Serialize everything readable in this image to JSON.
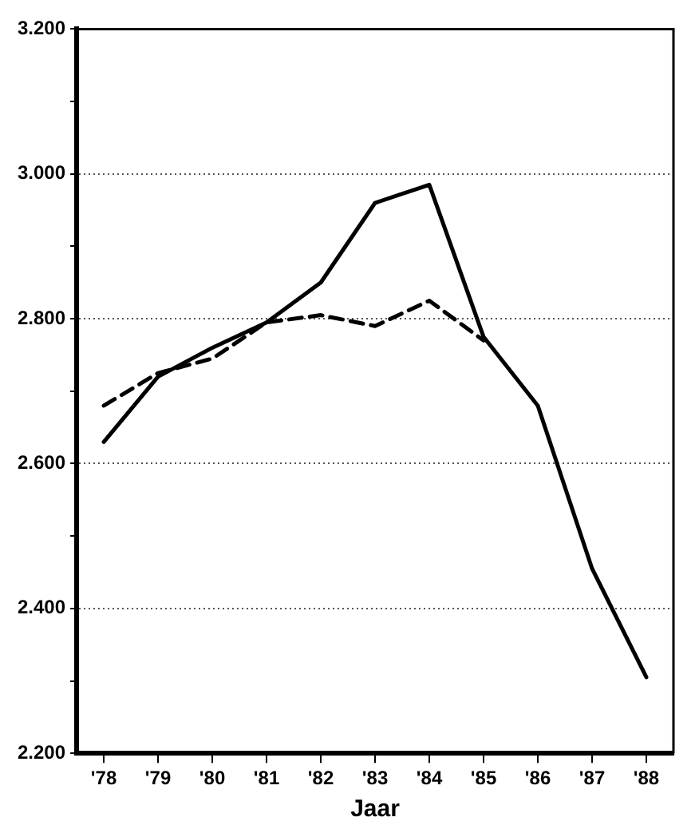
{
  "chart_data": {
    "type": "line",
    "xlabel": "Jaar",
    "categories": [
      "'78",
      "'79",
      "'80",
      "'81",
      "'82",
      "'83",
      "'84",
      "'85",
      "'86",
      "'87",
      "'88"
    ],
    "series": [
      {
        "color": "#000000",
        "line_style": "solid",
        "values": [
          2630,
          2720,
          2760,
          2795,
          2850,
          2960,
          2985,
          2775,
          2680,
          2455,
          2305
        ]
      },
      {
        "color": "#000000",
        "line_style": "dashed",
        "values": [
          2680,
          2725,
          2745,
          2795,
          2805,
          2790,
          2825,
          2770,
          null,
          null,
          null
        ]
      }
    ],
    "ylim": [
      2200,
      3200
    ],
    "yticks": [
      {
        "value": 2200,
        "label": "2.200"
      },
      {
        "value": 2300,
        "label": null
      },
      {
        "value": 2400,
        "label": "2.400"
      },
      {
        "value": 2500,
        "label": null
      },
      {
        "value": 2600,
        "label": "2.600"
      },
      {
        "value": 2700,
        "label": null
      },
      {
        "value": 2800,
        "label": "2.800"
      },
      {
        "value": 2900,
        "label": null
      },
      {
        "value": 3000,
        "label": "3.000"
      },
      {
        "value": 3100,
        "label": null
      },
      {
        "value": 3200,
        "label": "3.200"
      }
    ],
    "grid": "y",
    "legend": false,
    "marker": "none"
  }
}
